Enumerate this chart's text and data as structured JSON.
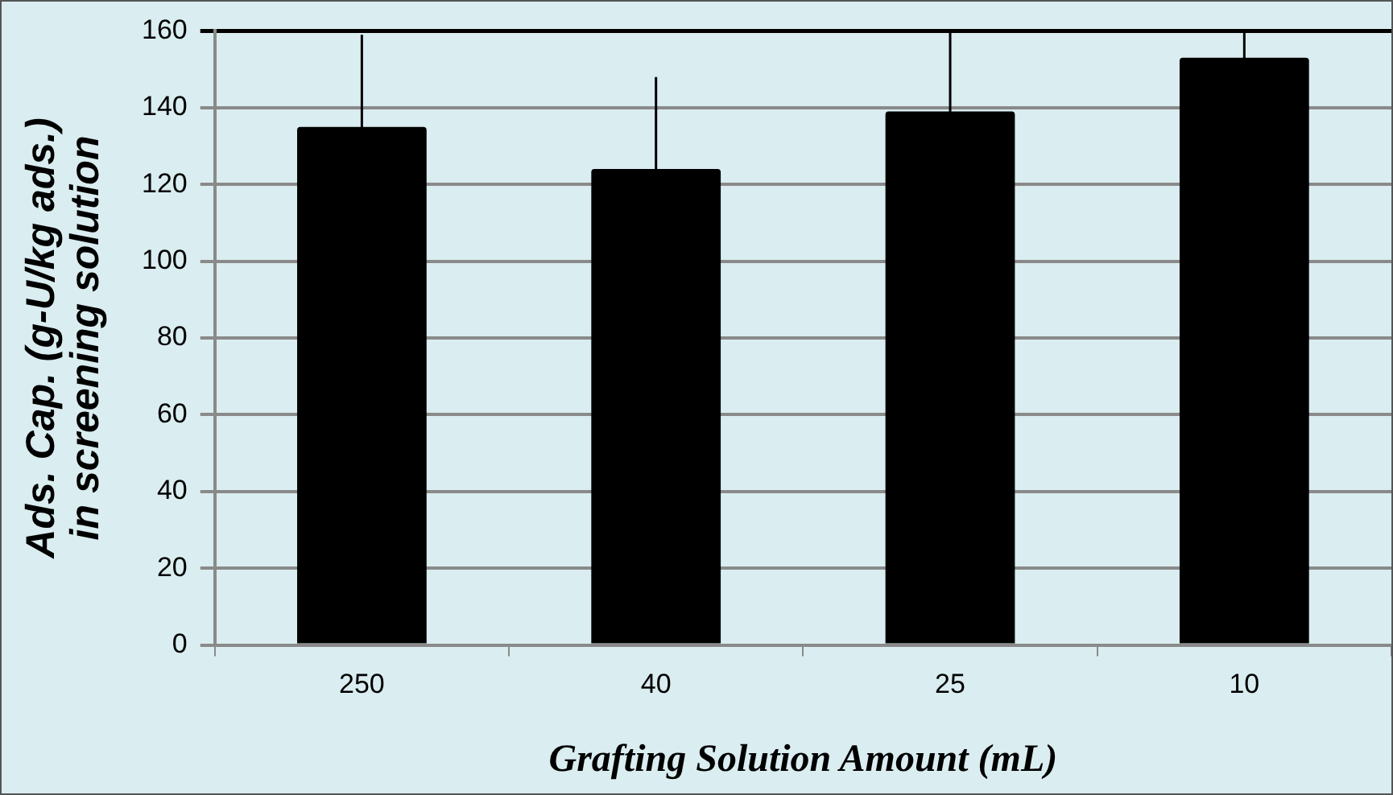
{
  "chart_data": {
    "type": "bar",
    "xlabel": "Grafting Solution Amount (mL)",
    "ylabel": "Ads. Cap. (g-U/kg ads.)\nin screening solution",
    "categories": [
      "250",
      "40",
      "25",
      "10"
    ],
    "values": [
      135,
      124,
      139,
      153
    ],
    "errors": [
      24,
      24,
      21,
      7
    ],
    "color": "#000000",
    "ylim": [
      0,
      160
    ],
    "yticks": [
      0,
      20,
      40,
      60,
      80,
      100,
      120,
      140,
      160
    ],
    "grid": "y",
    "legend": false
  }
}
